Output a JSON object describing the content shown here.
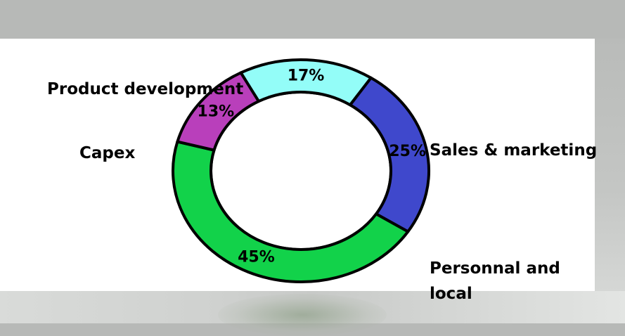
{
  "chart_data": {
    "type": "pie",
    "variant": "donut",
    "title": "",
    "slices": [
      {
        "label": "Product development",
        "value": 17,
        "value_label": "17%",
        "color": "#93fdf8"
      },
      {
        "label": "Sales & marketing",
        "value": 25,
        "value_label": "25%",
        "color": "#3f48cc"
      },
      {
        "label": "Personnal and local",
        "value": 45,
        "value_label": "45%",
        "color": "#12d24a"
      },
      {
        "label": "Capex",
        "value": 13,
        "value_label": "13%",
        "color": "#b93fbb"
      }
    ],
    "legend": "none"
  },
  "colors": {
    "outline": "#000000",
    "hole": "#ffffff"
  }
}
